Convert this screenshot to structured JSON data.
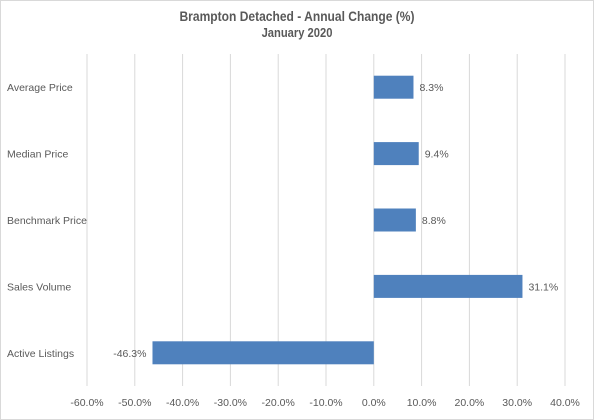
{
  "chart_data": {
    "type": "bar",
    "orientation": "horizontal",
    "title": "Brampton Detached - Annual Change (%)",
    "subtitle": "January 2020",
    "categories": [
      "Average Price",
      "Median Price",
      "Benchmark Price",
      "Sales Volume",
      "Active Listings"
    ],
    "values": [
      8.3,
      9.4,
      8.8,
      31.1,
      -46.3
    ],
    "data_labels": [
      "8.3%",
      "9.4%",
      "8.8%",
      "31.1%",
      "-46.3%"
    ],
    "xlim": [
      -60,
      40
    ],
    "x_ticks": [
      -60,
      -50,
      -40,
      -30,
      -20,
      -10,
      0,
      10,
      20,
      30,
      40
    ],
    "x_tick_labels": [
      "-60.0%",
      "-50.0%",
      "-40.0%",
      "-30.0%",
      "-20.0%",
      "-10.0%",
      "0.0%",
      "10.0%",
      "20.0%",
      "30.0%",
      "40.0%"
    ],
    "grid": "vertical",
    "legend": "none",
    "bar_color": "#4f81bd",
    "grid_color": "#d9d9d9"
  }
}
